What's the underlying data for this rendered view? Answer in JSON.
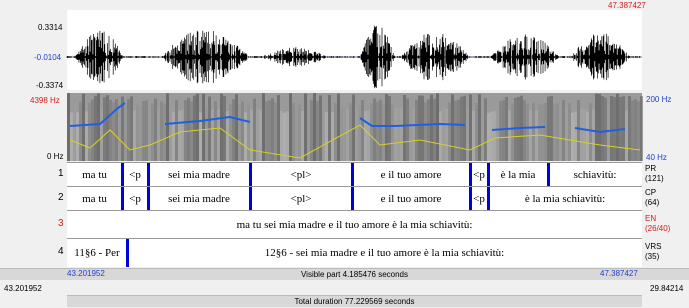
{
  "waveform": {
    "max": "0.3314",
    "mid": "-0.0104",
    "min": "-0.3374",
    "cursor": "47.387427"
  },
  "spectrogram": {
    "max_freq": "4398 Hz",
    "min_freq": "0 Hz",
    "pitch_max": "200 Hz",
    "pitch_min": "40 Hz"
  },
  "tiers": [
    {
      "number": "1",
      "name": "PR",
      "count": "(121)",
      "intervals": [
        "ma tu",
        "<p",
        "sei mia madre",
        "<pl>",
        "e il tuo amore",
        "<p",
        "è la mia",
        "schiavitù:"
      ]
    },
    {
      "number": "2",
      "name": "CP",
      "count": "(64)",
      "intervals": [
        "ma tu",
        "<p",
        "sei mia madre",
        "<pl>",
        "e il tuo amore",
        "<p",
        "è la mia schiavitù:"
      ]
    },
    {
      "number": "3",
      "name": "EN",
      "count": "(26/40)",
      "intervals": [
        "ma tu sei mia madre e il tuo amore è la mia schiavitù:"
      ]
    },
    {
      "number": "4",
      "name": "VRS",
      "count": "(35)",
      "intervals": [
        "11§6 - Per",
        "12§6 - sei mia madre e il tuo amore è la mia schiavitù:"
      ]
    }
  ],
  "footer": {
    "window_start": "43.201952",
    "visible": "Visible part 4.185476 seconds",
    "window_end": "47.387427",
    "outer_left": "43.201952",
    "outer_right": "29.84214",
    "total": "Total duration 77.229569 seconds"
  }
}
